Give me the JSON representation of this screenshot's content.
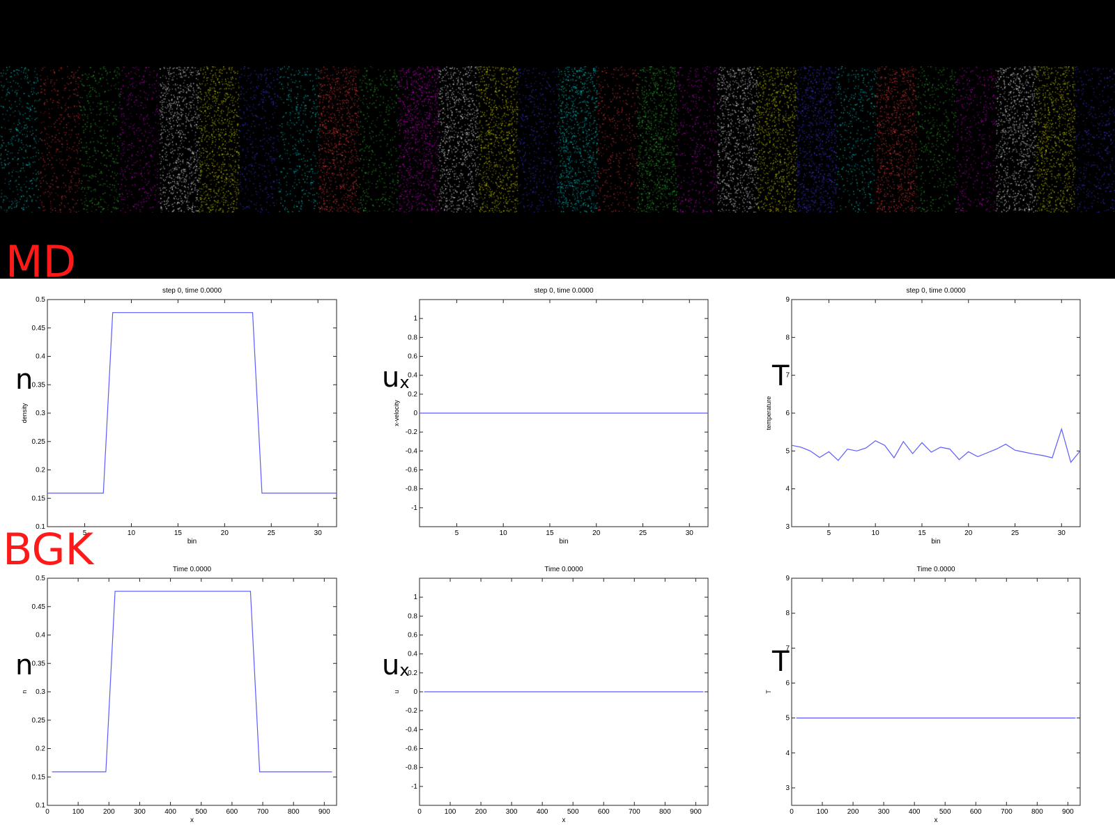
{
  "labels": {
    "md": "MD",
    "bgk": "BGK"
  },
  "symbols": [
    "n",
    "u",
    "x",
    "T",
    "n",
    "u",
    "x",
    "T"
  ],
  "colors": {
    "background": "#000000",
    "label": "#ff1a1a",
    "line": "#5b5bff",
    "particles": [
      "#00e5e5",
      "#e5e500",
      "#e500e5",
      "#ff4040",
      "#4040ff",
      "#ffffff",
      "#33cc33"
    ]
  },
  "chart_data": [
    {
      "type": "line",
      "title": "step 0, time 0.0000",
      "xlabel": "bin",
      "ylabel": "density",
      "xlim": [
        1,
        32
      ],
      "ylim": [
        0.1,
        0.5
      ],
      "xticks": [
        5,
        10,
        15,
        20,
        25,
        30
      ],
      "yticks": [
        0.1,
        0.15,
        0.2,
        0.25,
        0.3,
        0.35,
        0.4,
        0.45,
        0.5
      ],
      "ytick_labels": [
        "0.1",
        "0.15",
        "0.2",
        "0.25",
        "0.3",
        "0.35",
        "0.4",
        "0.45",
        "0.5"
      ],
      "x": [
        1,
        7,
        8,
        23,
        24,
        32
      ],
      "y": [
        0.159,
        0.159,
        0.477,
        0.477,
        0.159,
        0.159
      ]
    },
    {
      "type": "line",
      "title": "step 0, time 0.0000",
      "xlabel": "bin",
      "ylabel": "x-velocity",
      "xlim": [
        1,
        32
      ],
      "ylim": [
        -1.2,
        1.2
      ],
      "xticks": [
        5,
        10,
        15,
        20,
        25,
        30
      ],
      "yticks": [
        -1,
        -0.8,
        -0.6,
        -0.4,
        -0.2,
        0,
        0.2,
        0.4,
        0.6,
        0.8,
        1
      ],
      "ytick_labels": [
        "-1",
        "-0.8",
        "-0.6",
        "-0.4",
        "-0.2",
        "0",
        "0.2",
        "0.4",
        "0.6",
        "0.8",
        "1"
      ],
      "x": [
        1,
        32
      ],
      "y": [
        0,
        0
      ]
    },
    {
      "type": "line",
      "title": "step 0, time 0.0000",
      "xlabel": "bin",
      "ylabel": "temperature",
      "xlim": [
        1,
        32
      ],
      "ylim": [
        3,
        9
      ],
      "xticks": [
        5,
        10,
        15,
        20,
        25,
        30
      ],
      "yticks": [
        3,
        4,
        5,
        6,
        7,
        8,
        9
      ],
      "ytick_labels": [
        "3",
        "4",
        "5",
        "6",
        "7",
        "8",
        "9"
      ],
      "x": [
        1,
        2,
        3,
        4,
        5,
        6,
        7,
        8,
        9,
        10,
        11,
        12,
        13,
        14,
        15,
        16,
        17,
        18,
        19,
        20,
        21,
        22,
        23,
        24,
        25,
        26,
        27,
        28,
        29,
        30,
        31,
        32
      ],
      "y": [
        5.15,
        5.1,
        5.0,
        4.83,
        4.98,
        4.75,
        5.05,
        5.0,
        5.08,
        5.27,
        5.15,
        4.82,
        5.25,
        4.93,
        5.22,
        4.97,
        5.1,
        5.05,
        4.77,
        4.98,
        4.85,
        4.95,
        5.05,
        5.18,
        5.02,
        4.97,
        4.92,
        4.88,
        4.82,
        5.58,
        4.7,
        5.0
      ]
    },
    {
      "type": "line",
      "title": "Time 0.0000",
      "xlabel": "x",
      "ylabel": "n",
      "xlim": [
        0,
        940
      ],
      "ylim": [
        0.1,
        0.5
      ],
      "xticks": [
        0,
        100,
        200,
        300,
        400,
        500,
        600,
        700,
        800,
        900
      ],
      "yticks": [
        0.1,
        0.15,
        0.2,
        0.25,
        0.3,
        0.35,
        0.4,
        0.45,
        0.5
      ],
      "ytick_labels": [
        "0.1",
        "0.15",
        "0.2",
        "0.25",
        "0.3",
        "0.35",
        "0.4",
        "0.45",
        "0.5"
      ],
      "x": [
        15,
        190,
        220,
        660,
        690,
        925
      ],
      "y": [
        0.159,
        0.159,
        0.477,
        0.477,
        0.159,
        0.159
      ]
    },
    {
      "type": "line",
      "title": "Time 0.0000",
      "xlabel": "x",
      "ylabel": "u",
      "xlim": [
        0,
        940
      ],
      "ylim": [
        -1.2,
        1.2
      ],
      "xticks": [
        0,
        100,
        200,
        300,
        400,
        500,
        600,
        700,
        800,
        900
      ],
      "yticks": [
        -1,
        -0.8,
        -0.6,
        -0.4,
        -0.2,
        0,
        0.2,
        0.4,
        0.6,
        0.8,
        1
      ],
      "ytick_labels": [
        "-1",
        "-0.8",
        "-0.6",
        "-0.4",
        "-0.2",
        "0",
        "0.2",
        "0.4",
        "0.6",
        "0.8",
        "1"
      ],
      "x": [
        15,
        925
      ],
      "y": [
        0,
        0
      ]
    },
    {
      "type": "line",
      "title": "Time 0.0000",
      "xlabel": "x",
      "ylabel": "T",
      "xlim": [
        0,
        940
      ],
      "ylim": [
        2.5,
        9
      ],
      "xticks": [
        0,
        100,
        200,
        300,
        400,
        500,
        600,
        700,
        800,
        900
      ],
      "yticks": [
        3,
        4,
        5,
        6,
        7,
        8,
        9
      ],
      "ytick_labels": [
        "3",
        "4",
        "5",
        "6",
        "7",
        "8",
        "9"
      ],
      "x": [
        15,
        925
      ],
      "y": [
        5,
        5
      ]
    }
  ]
}
